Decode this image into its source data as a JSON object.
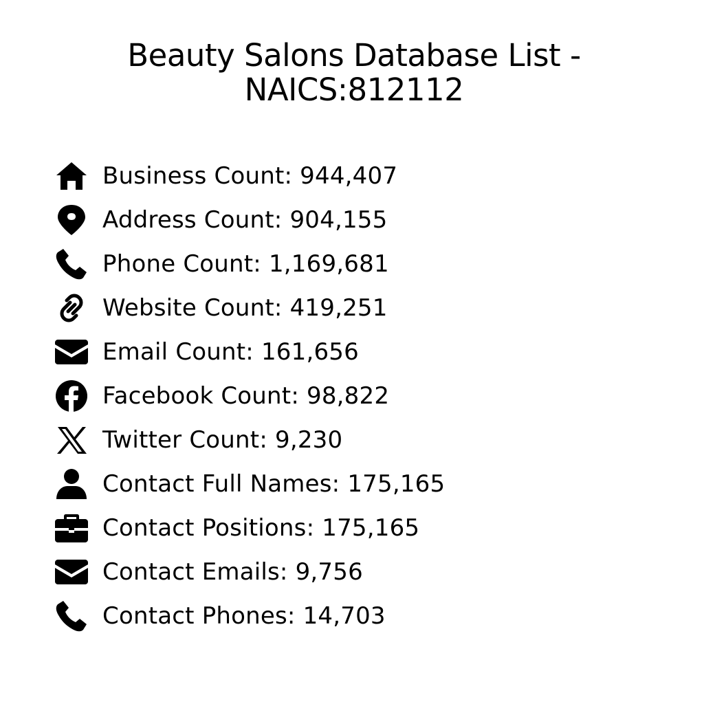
{
  "title": {
    "line1": "Beauty Salons Database List -",
    "line2": "NAICS:812112"
  },
  "items": [
    {
      "icon": "house-icon",
      "label": "Business Count: 944,407"
    },
    {
      "icon": "location-pin-icon",
      "label": "Address Count: 904,155"
    },
    {
      "icon": "phone-icon",
      "label": "Phone Count: 1,169,681"
    },
    {
      "icon": "link-icon",
      "label": "Website Count: 419,251"
    },
    {
      "icon": "envelope-icon",
      "label": "Email Count: 161,656"
    },
    {
      "icon": "facebook-icon",
      "label": "Facebook Count: 98,822"
    },
    {
      "icon": "x-twitter-icon",
      "label": "Twitter Count: 9,230"
    },
    {
      "icon": "user-icon",
      "label": "Contact Full Names: 175,165"
    },
    {
      "icon": "briefcase-icon",
      "label": "Contact Positions: 175,165"
    },
    {
      "icon": "envelope-icon",
      "label": "Contact Emails: 9,756"
    },
    {
      "icon": "phone-icon",
      "label": "Contact Phones: 14,703"
    }
  ]
}
